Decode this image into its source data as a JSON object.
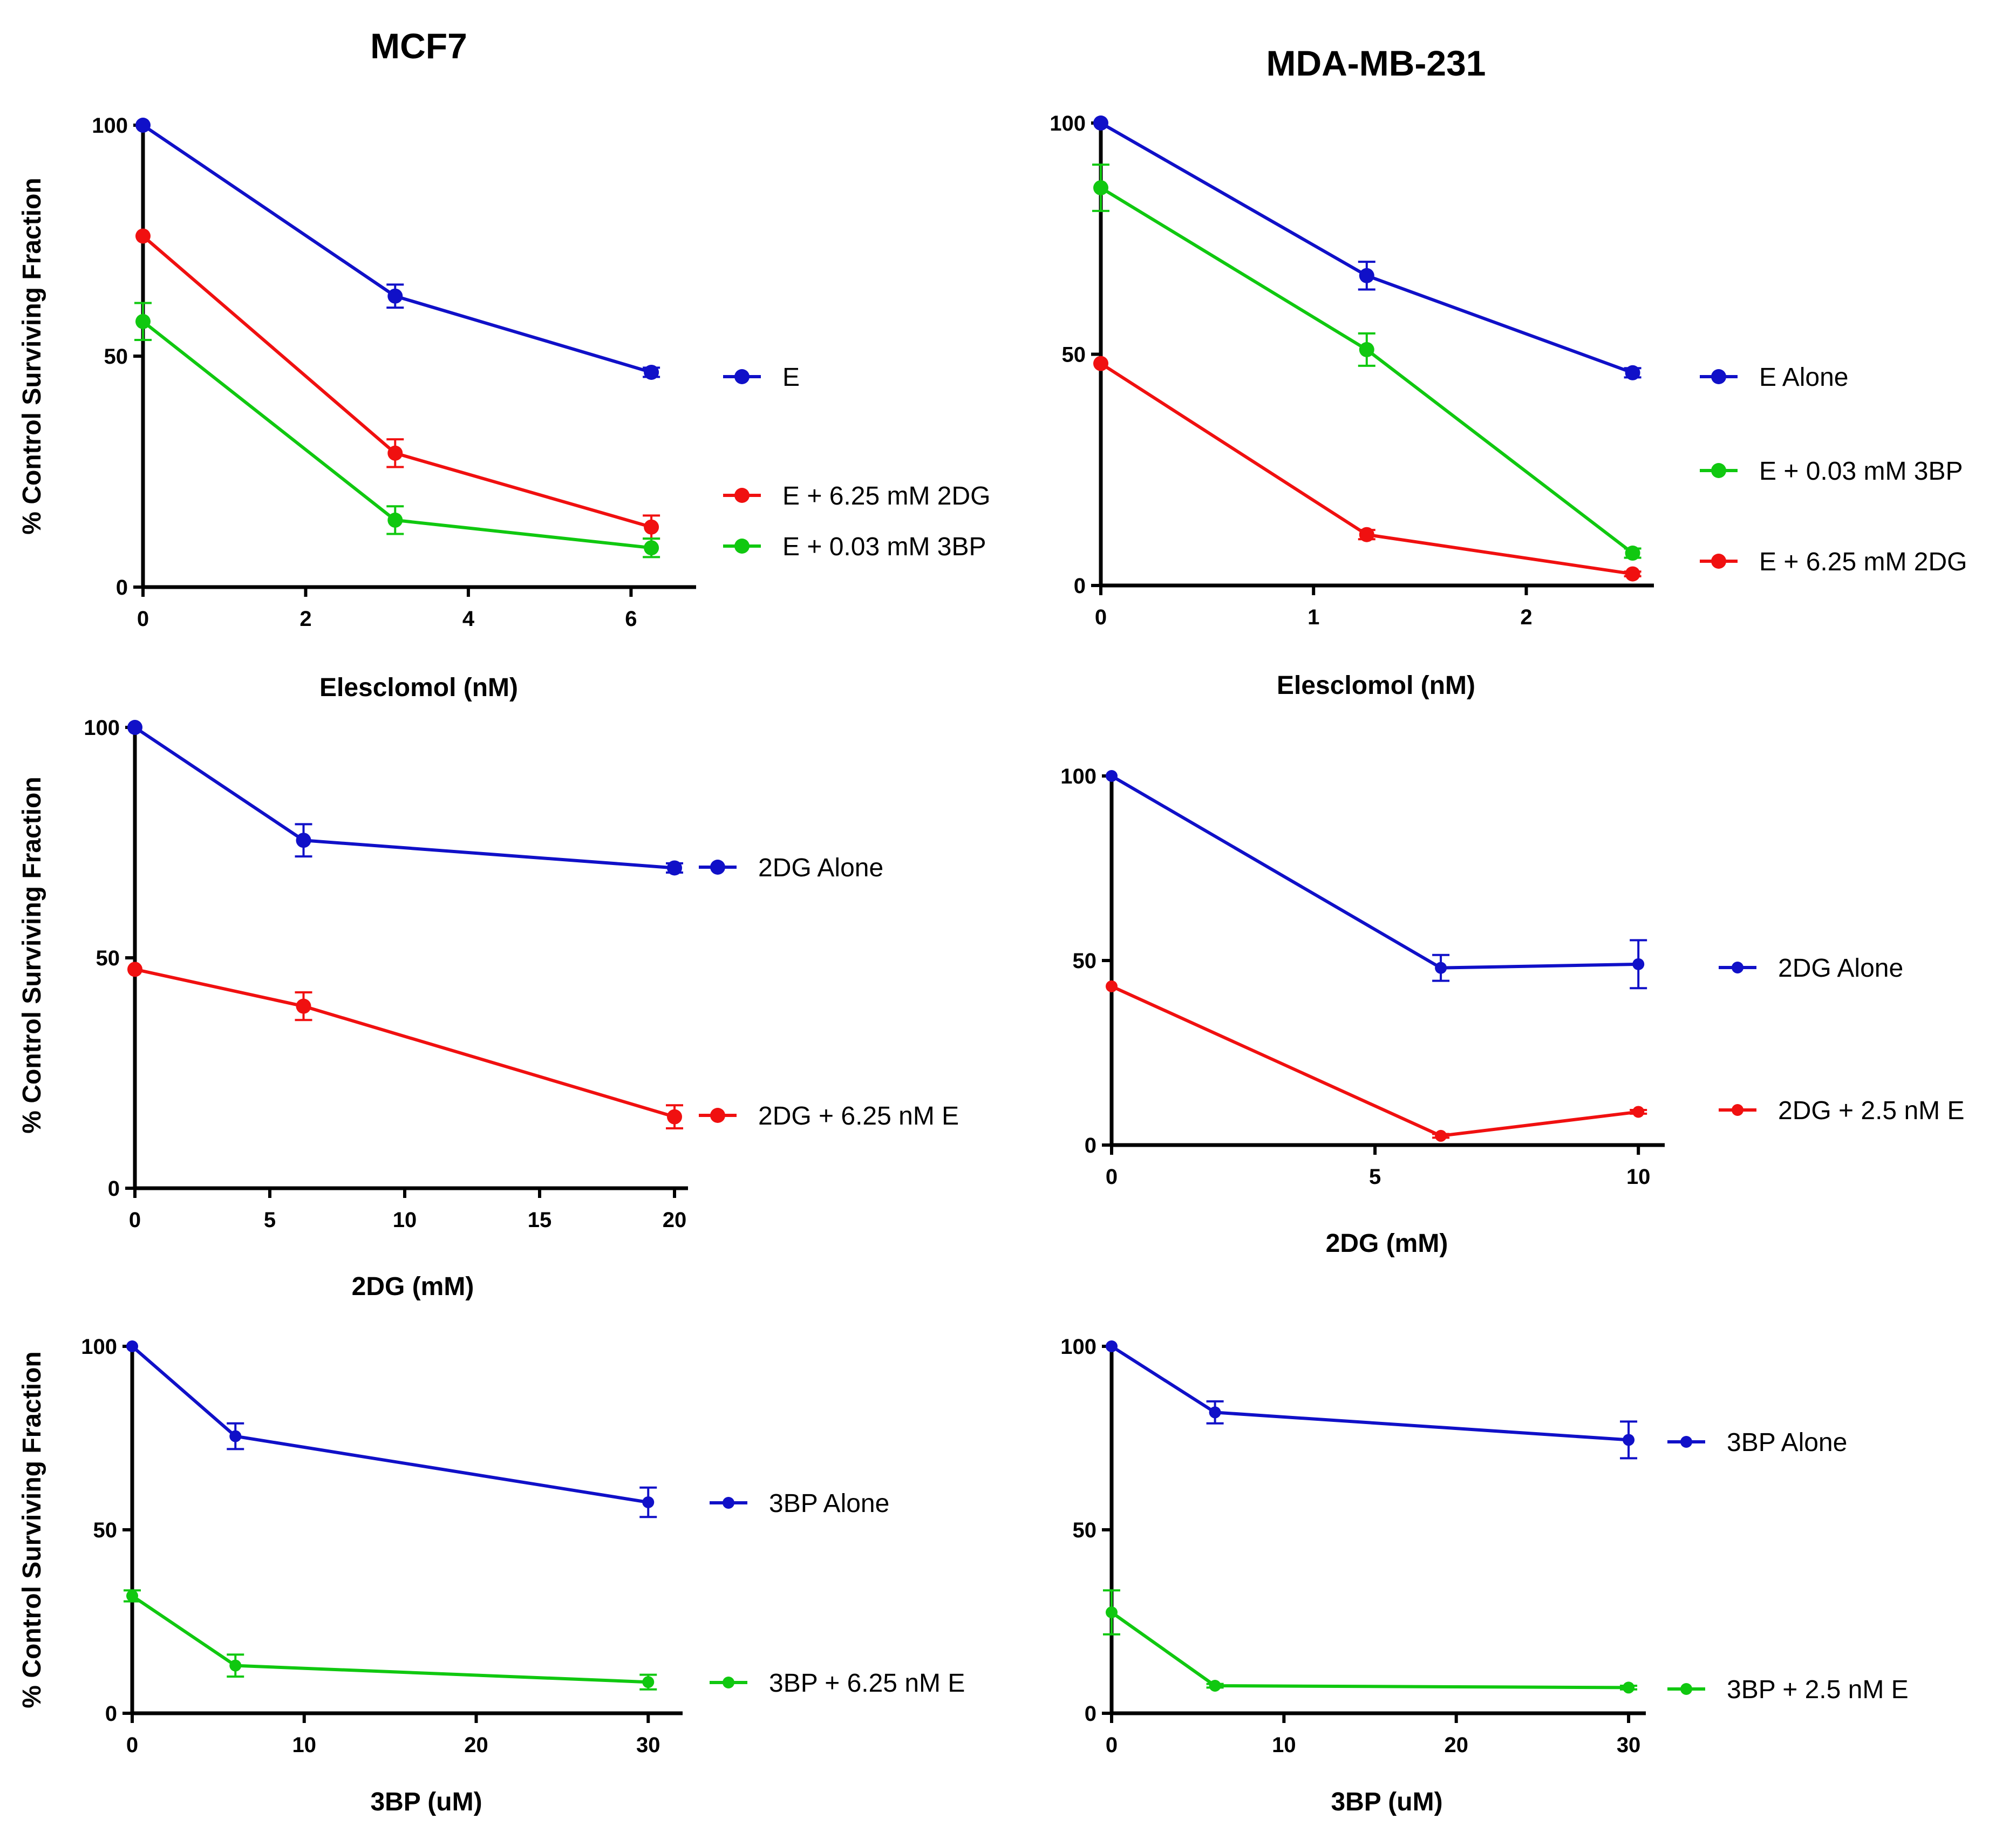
{
  "figure": {
    "column_titles": [
      "MCF7",
      "MDA-MB-231"
    ]
  },
  "colors": {
    "blue": "#1010c8",
    "red": "#f01010",
    "green": "#10c810",
    "axis": "#000000"
  },
  "chart_data": [
    {
      "type": "line",
      "panel": "top-left",
      "title": "",
      "xlabel": "Elesclomol  (nM)",
      "ylabel": "% Control Surviving Fraction",
      "xlim": [
        0,
        6.8
      ],
      "ylim": [
        0,
        100
      ],
      "xticks": [
        0,
        2,
        4,
        6
      ],
      "yticks": [
        0,
        50,
        100
      ],
      "legend_placement": "right",
      "marker_size": "large",
      "series": [
        {
          "name": "E",
          "color": "blue",
          "x": [
            0,
            3.1,
            6.25
          ],
          "y": [
            100,
            63,
            46.5
          ],
          "err": [
            0,
            2.5,
            1
          ]
        },
        {
          "name": "E + 6.25 mM 2DG",
          "color": "red",
          "x": [
            0,
            3.1,
            6.25
          ],
          "y": [
            76,
            29,
            13
          ],
          "err": [
            0,
            3,
            2.5
          ]
        },
        {
          "name": "E + 0.03 mM 3BP",
          "color": "green",
          "x": [
            0,
            3.1,
            6.25
          ],
          "y": [
            57.5,
            14.5,
            8.5
          ],
          "err": [
            4,
            3,
            2
          ]
        }
      ]
    },
    {
      "type": "line",
      "panel": "top-right",
      "title": "",
      "xlabel": "Elesclomol (nM)",
      "ylabel": "",
      "xlim": [
        0,
        2.6
      ],
      "ylim": [
        0,
        100
      ],
      "xticks": [
        0,
        1,
        2
      ],
      "yticks": [
        0,
        50,
        100
      ],
      "legend_placement": "right",
      "marker_size": "large",
      "series": [
        {
          "name": "E Alone",
          "color": "blue",
          "x": [
            0,
            1.25,
            2.5
          ],
          "y": [
            100,
            67,
            46
          ],
          "err": [
            0,
            3,
            1
          ]
        },
        {
          "name": "E + 0.03 mM 3BP",
          "color": "green",
          "x": [
            0,
            1.25,
            2.5
          ],
          "y": [
            86,
            51,
            7
          ],
          "err": [
            5,
            3.5,
            1
          ]
        },
        {
          "name": "E + 6.25 mM 2DG",
          "color": "red",
          "x": [
            0,
            1.25,
            2.5
          ],
          "y": [
            48,
            11,
            2.5
          ],
          "err": [
            0,
            1,
            0.5
          ]
        }
      ]
    },
    {
      "type": "line",
      "panel": "middle-left",
      "title": "",
      "xlabel": "2DG  (mM)",
      "ylabel": "%  Control Surviving Fraction",
      "xlim": [
        0,
        20.5
      ],
      "ylim": [
        0,
        100
      ],
      "xticks": [
        0,
        5,
        10,
        15,
        20
      ],
      "yticks": [
        0,
        50,
        100
      ],
      "legend_placement": "right",
      "marker_size": "large",
      "series": [
        {
          "name": "2DG Alone",
          "color": "blue",
          "x": [
            0,
            6.25,
            20
          ],
          "y": [
            100,
            75.5,
            69.5
          ],
          "err": [
            0,
            3.5,
            1
          ]
        },
        {
          "name": "2DG + 6.25 nM E",
          "color": "red",
          "x": [
            0,
            6.25,
            20
          ],
          "y": [
            47.5,
            39.5,
            15.5
          ],
          "err": [
            0,
            3,
            2.5
          ]
        }
      ]
    },
    {
      "type": "line",
      "panel": "middle-right",
      "title": "",
      "xlabel": "2DG (mM)",
      "ylabel": "",
      "xlim": [
        0,
        10.5
      ],
      "ylim": [
        0,
        100
      ],
      "xticks": [
        0,
        5,
        10
      ],
      "yticks": [
        0,
        50,
        100
      ],
      "legend_placement": "right",
      "marker_size": "small",
      "series": [
        {
          "name": "2DG Alone",
          "color": "blue",
          "x": [
            0,
            6.25,
            10
          ],
          "y": [
            100,
            48,
            49
          ],
          "err": [
            0,
            3.5,
            6.5
          ]
        },
        {
          "name": "2DG + 2.5 nM E",
          "color": "red",
          "x": [
            0,
            6.25,
            10
          ],
          "y": [
            43,
            2.5,
            9
          ],
          "err": [
            0,
            0.5,
            0.5
          ]
        }
      ]
    },
    {
      "type": "line",
      "panel": "bottom-left",
      "title": "",
      "xlabel": "3BP (uM)",
      "ylabel": "% Control Surviving Fraction",
      "xlim": [
        0,
        32
      ],
      "ylim": [
        0,
        100
      ],
      "xticks": [
        0,
        10,
        20,
        30
      ],
      "yticks": [
        0,
        50,
        100
      ],
      "legend_placement": "right",
      "marker_size": "small",
      "series": [
        {
          "name": "3BP Alone",
          "color": "blue",
          "x": [
            0,
            6,
            30
          ],
          "y": [
            100,
            75.5,
            57.5
          ],
          "err": [
            0,
            3.5,
            4
          ]
        },
        {
          "name": "3BP + 6.25 nM E",
          "color": "green",
          "x": [
            0,
            6,
            30
          ],
          "y": [
            32,
            13,
            8.5
          ],
          "err": [
            1.5,
            3,
            2
          ]
        }
      ]
    },
    {
      "type": "line",
      "panel": "bottom-right",
      "title": "",
      "xlabel": "3BP (uM)",
      "ylabel": "",
      "xlim": [
        0,
        31
      ],
      "ylim": [
        0,
        100
      ],
      "xticks": [
        0,
        10,
        20,
        30
      ],
      "yticks": [
        0,
        50,
        100
      ],
      "legend_placement": "right",
      "marker_size": "small",
      "series": [
        {
          "name": "3BP Alone",
          "color": "blue",
          "x": [
            0,
            6,
            30
          ],
          "y": [
            100,
            82,
            74.5
          ],
          "err": [
            0,
            3,
            5
          ]
        },
        {
          "name": "3BP + 2.5 nM E",
          "color": "green",
          "x": [
            0,
            6,
            30
          ],
          "y": [
            27.5,
            7.5,
            7
          ],
          "err": [
            6,
            0.5,
            0.5
          ]
        }
      ]
    }
  ]
}
